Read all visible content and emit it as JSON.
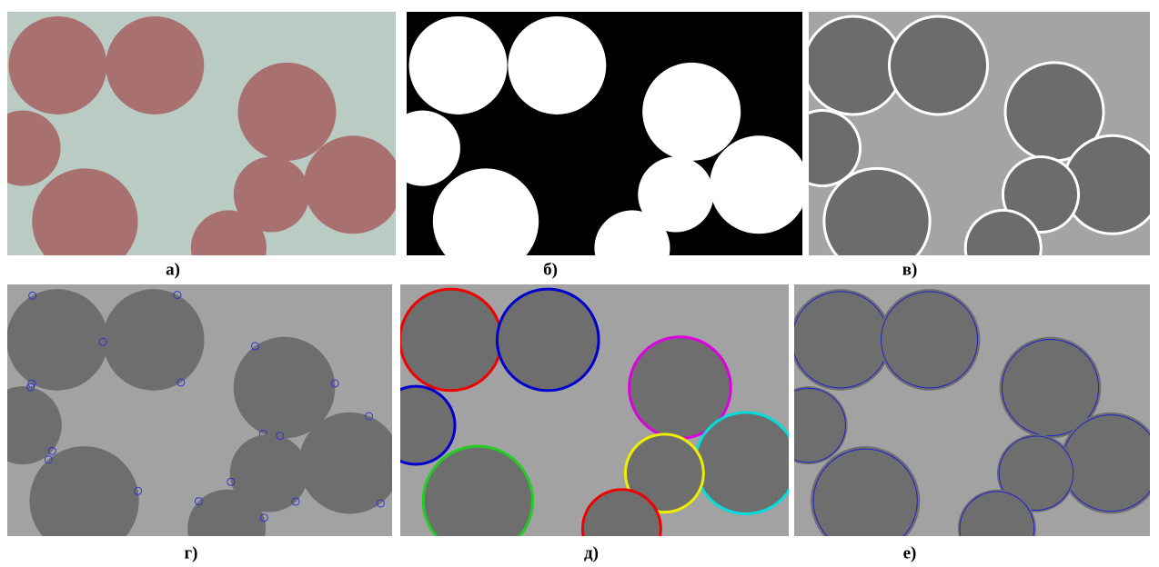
{
  "panels": [
    {
      "label": "а)"
    },
    {
      "label": "б)"
    },
    {
      "label": "в)"
    },
    {
      "label": "г)"
    },
    {
      "label": "д)"
    },
    {
      "label": "е)"
    }
  ]
}
